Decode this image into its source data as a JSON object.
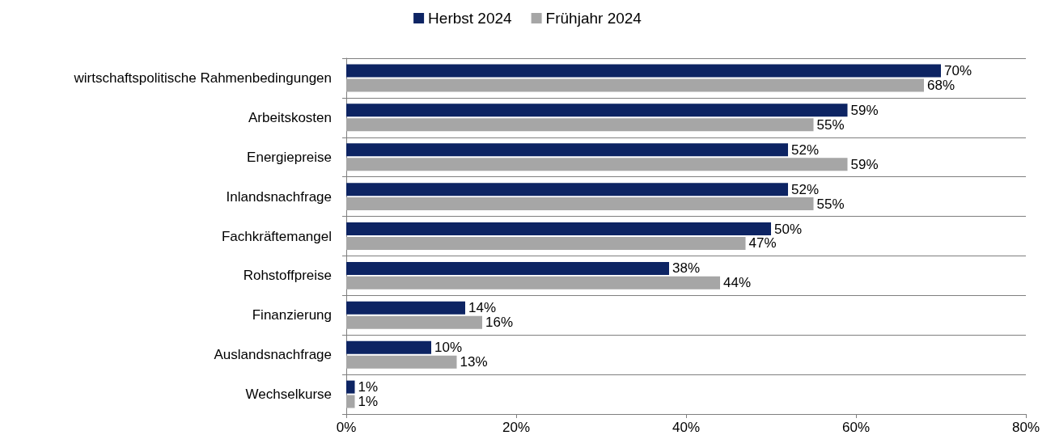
{
  "chart_data": {
    "type": "bar",
    "orientation": "horizontal",
    "categories": [
      "wirtschaftspolitische Rahmenbedingungen",
      "Arbeitskosten",
      "Energiepreise",
      "Inlandsnachfrage",
      "Fachkräftemangel",
      "Rohstoffpreise",
      "Finanzierung",
      "Auslandsnachfrage",
      "Wechselkurse"
    ],
    "series": [
      {
        "name": "Herbst 2024",
        "color": "#0d2463",
        "values": [
          70,
          59,
          52,
          52,
          50,
          38,
          14,
          10,
          1
        ],
        "value_labels": [
          "70%",
          "59%",
          "52%",
          "52%",
          "50%",
          "38%",
          "14%",
          "10%",
          "1%"
        ]
      },
      {
        "name": "Frühjahr 2024",
        "color": "#a6a6a6",
        "values": [
          68,
          55,
          59,
          55,
          47,
          44,
          16,
          13,
          1
        ],
        "value_labels": [
          "68%",
          "55%",
          "59%",
          "55%",
          "47%",
          "44%",
          "16%",
          "13%",
          "1%"
        ]
      }
    ],
    "xlim": [
      0,
      80
    ],
    "xticks": [
      {
        "value": 0,
        "label": "0%"
      },
      {
        "value": 20,
        "label": "20%"
      },
      {
        "value": 40,
        "label": "40%"
      },
      {
        "value": 60,
        "label": "60%"
      },
      {
        "value": 80,
        "label": "80%"
      }
    ],
    "grid": "y",
    "legend": "top"
  }
}
